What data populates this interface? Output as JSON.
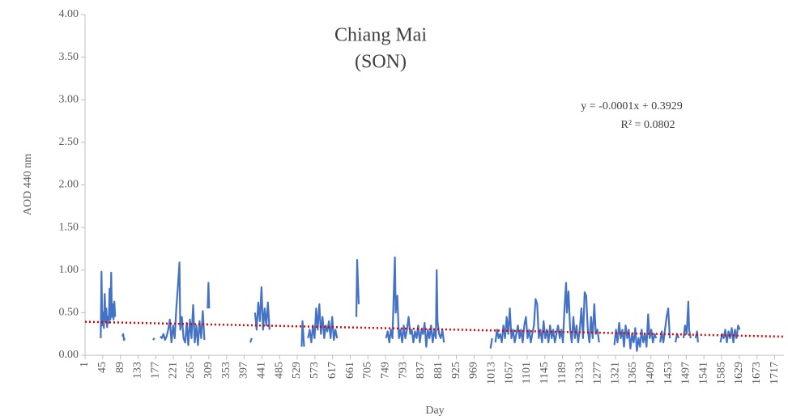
{
  "chart_data": {
    "type": "line",
    "title": "Chiang Mai",
    "subtitle": "(SON)",
    "x_label": "Day",
    "y_label": "AOD 440 nm",
    "color": "#4472c4",
    "trendline": {
      "label": "y = -0.0001x + 0.3929",
      "r2_label": "R² = 0.0802",
      "slope": -0.0001,
      "intercept": 0.3929,
      "color": "#e00000"
    },
    "xlim": [
      1,
      1740
    ],
    "ylim": [
      0,
      4
    ],
    "xticks": [
      1,
      45,
      89,
      133,
      177,
      221,
      265,
      309,
      353,
      397,
      441,
      485,
      529,
      573,
      617,
      661,
      705,
      749,
      793,
      837,
      881,
      925,
      969,
      1013,
      1057,
      1101,
      1145,
      1189,
      1233,
      1277,
      1321,
      1365,
      1409,
      1453,
      1497,
      1541,
      1585,
      1629,
      1673,
      1717
    ],
    "yticks": [
      {
        "value": 0,
        "label": "0.00"
      },
      {
        "value": 0.5,
        "label": "0.50"
      },
      {
        "value": 1,
        "label": "1.00"
      },
      {
        "value": 1.5,
        "label": "1.50"
      },
      {
        "value": 2,
        "label": "2.00"
      },
      {
        "value": 2.5,
        "label": "2.50"
      },
      {
        "value": 3,
        "label": "3.00"
      },
      {
        "value": 3.5,
        "label": "3.50"
      },
      {
        "value": 4,
        "label": "4.00"
      }
    ],
    "x": [
      40,
      42,
      44,
      46,
      48,
      50,
      52,
      54,
      56,
      58,
      60,
      62,
      64,
      66,
      68,
      70,
      72,
      74,
      76,
      80,
      94,
      96,
      98,
      100,
      130,
      170,
      174,
      180,
      188,
      192,
      196,
      200,
      204,
      208,
      212,
      216,
      220,
      224,
      228,
      232,
      236,
      238,
      242,
      246,
      250,
      254,
      258,
      262,
      266,
      270,
      274,
      278,
      282,
      286,
      290,
      294,
      298,
      302,
      306,
      308,
      310,
      360,
      412,
      416,
      420,
      424,
      428,
      432,
      436,
      440,
      444,
      448,
      452,
      456,
      460,
      500,
      540,
      542,
      546,
      550,
      556,
      560,
      564,
      568,
      572,
      576,
      580,
      584,
      588,
      592,
      596,
      600,
      604,
      608,
      612,
      616,
      620,
      624,
      628,
      650,
      676,
      678,
      680,
      682,
      710,
      740,
      745,
      750,
      754,
      758,
      762,
      766,
      770,
      772,
      774,
      778,
      782,
      786,
      790,
      794,
      798,
      802,
      806,
      810,
      814,
      818,
      822,
      826,
      830,
      834,
      838,
      842,
      846,
      850,
      854,
      858,
      862,
      866,
      870,
      874,
      876,
      878,
      882,
      886,
      890,
      894,
      950,
      1010,
      1014,
      1018,
      1022,
      1026,
      1030,
      1034,
      1038,
      1042,
      1046,
      1050,
      1054,
      1058,
      1062,
      1066,
      1070,
      1074,
      1078,
      1082,
      1086,
      1090,
      1094,
      1098,
      1102,
      1106,
      1110,
      1114,
      1118,
      1122,
      1126,
      1130,
      1134,
      1138,
      1142,
      1146,
      1150,
      1154,
      1158,
      1162,
      1166,
      1170,
      1174,
      1178,
      1182,
      1186,
      1190,
      1194,
      1198,
      1200,
      1204,
      1208,
      1212,
      1216,
      1220,
      1224,
      1228,
      1232,
      1236,
      1240,
      1244,
      1248,
      1252,
      1256,
      1260,
      1264,
      1268,
      1272,
      1276,
      1280,
      1300,
      1318,
      1322,
      1326,
      1330,
      1334,
      1338,
      1342,
      1346,
      1350,
      1354,
      1358,
      1362,
      1366,
      1370,
      1374,
      1378,
      1382,
      1386,
      1390,
      1394,
      1398,
      1402,
      1406,
      1410,
      1414,
      1418,
      1422,
      1427,
      1432,
      1436,
      1440,
      1444,
      1448,
      1452,
      1456,
      1463,
      1470,
      1474,
      1478,
      1484,
      1490,
      1494,
      1498,
      1502,
      1504,
      1508,
      1514,
      1520,
      1524,
      1526,
      1550,
      1582,
      1586,
      1590,
      1594,
      1598,
      1602,
      1606,
      1610,
      1614,
      1618,
      1622,
      1626,
      1630
    ],
    "values": [
      0.2,
      0.98,
      0.35,
      0.5,
      0.32,
      0.72,
      0.4,
      0.55,
      0.33,
      0.45,
      0.38,
      0.78,
      0.42,
      0.97,
      0.45,
      0.6,
      0.42,
      0.63,
      0.45,
      null,
      0.22,
      0.25,
      0.18,
      0.2,
      null,
      0.18,
      0.2,
      null,
      0.22,
      0.2,
      0.25,
      0.18,
      0.22,
      0.3,
      0.42,
      0.15,
      0.35,
      0.2,
      0.55,
      0.8,
      1.09,
      0.3,
      0.45,
      0.2,
      0.15,
      0.38,
      0.12,
      0.42,
      0.2,
      0.59,
      0.15,
      0.35,
      0.12,
      0.4,
      0.2,
      0.52,
      0.18,
      null,
      0.55,
      0.85,
      0.55,
      null,
      0.15,
      0.2,
      null,
      0.5,
      0.3,
      0.62,
      0.4,
      0.8,
      0.3,
      0.55,
      0.35,
      0.62,
      0.3,
      null,
      0.1,
      0.4,
      0.1,
      null,
      0.2,
      0.3,
      0.15,
      0.35,
      0.2,
      0.55,
      0.3,
      0.6,
      0.25,
      0.45,
      0.2,
      0.35,
      0.28,
      0.4,
      0.2,
      0.45,
      0.18,
      0.3,
      0.2,
      null,
      0.45,
      1.12,
      0.85,
      0.6,
      null,
      0.1,
      null,
      0.2,
      0.28,
      0.15,
      0.3,
      0.2,
      0.85,
      1.15,
      0.5,
      0.7,
      0.2,
      0.3,
      0.15,
      0.35,
      0.2,
      0.3,
      0.45,
      0.25,
      0.3,
      0.15,
      0.28,
      0.2,
      0.35,
      0.15,
      0.3,
      0.25,
      0.38,
      0.1,
      0.3,
      0.2,
      0.35,
      0.15,
      0.3,
      0.2,
      1.0,
      0.4,
      0.25,
      0.2,
      0.3,
      0.15,
      null,
      0.08,
      0.2,
      null,
      0.15,
      0.3,
      0.2,
      0.25,
      0.15,
      0.35,
      0.2,
      0.45,
      0.25,
      0.55,
      0.2,
      0.3,
      0.15,
      0.25,
      0.35,
      0.2,
      0.3,
      0.15,
      0.35,
      0.45,
      0.2,
      0.3,
      0.15,
      0.25,
      0.35,
      0.66,
      0.6,
      0.2,
      0.3,
      0.15,
      0.4,
      0.2,
      0.3,
      0.15,
      0.35,
      0.2,
      0.3,
      0.15,
      0.25,
      0.35,
      0.2,
      0.3,
      0.15,
      0.55,
      0.85,
      0.5,
      0.75,
      0.3,
      0.15,
      0.45,
      0.2,
      0.35,
      0.15,
      0.3,
      0.55,
      0.2,
      0.74,
      0.7,
      0.3,
      0.15,
      0.45,
      0.2,
      0.6,
      0.25,
      0.3,
      0.15,
      null,
      0.12,
      0.3,
      0.15,
      0.38,
      0.2,
      0.3,
      0.1,
      0.35,
      0.2,
      0.3,
      0.08,
      0.25,
      0.15,
      0.32,
      0.05,
      0.2,
      0.1,
      0.3,
      0.15,
      0.25,
      0.1,
      0.48,
      0.2,
      0.3,
      0.15,
      0.25,
      0.2,
      null,
      0.15,
      0.28,
      0.15,
      0.3,
      0.45,
      0.55,
      0.2,
      null,
      0.15,
      0.25,
      0.2,
      null,
      0.2,
      0.35,
      0.25,
      0.63,
      0.3,
      0.2,
      null,
      0.2,
      0.28,
      0.15,
      null,
      0.15,
      0.25,
      0.2,
      0.3,
      0.15,
      0.28,
      0.2,
      0.32,
      0.15,
      0.3,
      0.2,
      0.35,
      0.3
    ]
  }
}
